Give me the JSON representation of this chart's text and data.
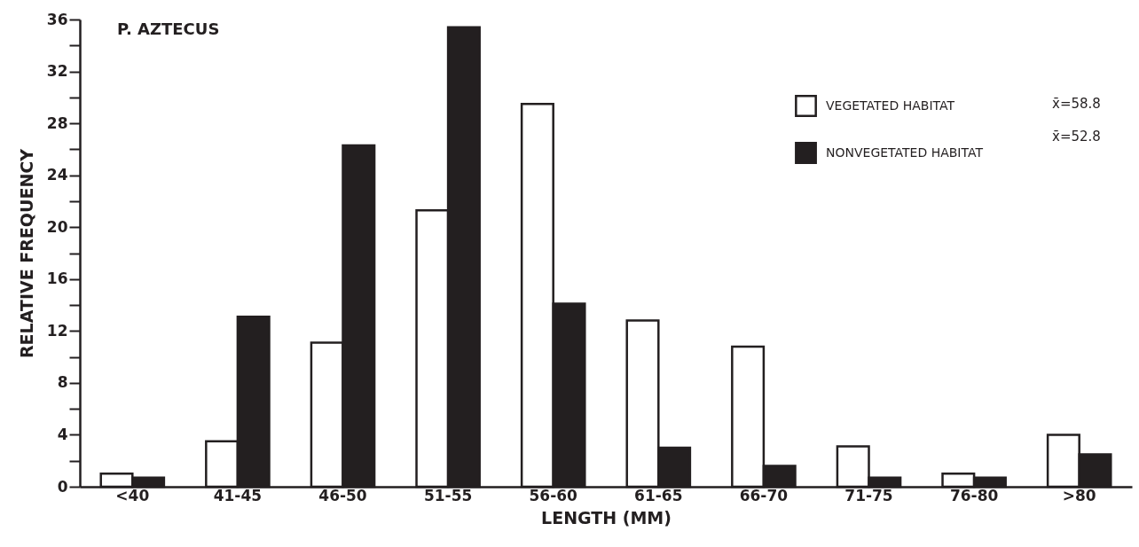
{
  "chart_data": {
    "type": "bar",
    "title": "P. AZTECUS",
    "xlabel": "LENGTH (MM)",
    "ylabel": "RELATIVE FREQUENCY",
    "categories": [
      "<40",
      "41-45",
      "46-50",
      "51-55",
      "56-60",
      "61-65",
      "66-70",
      "71-75",
      "76-80",
      ">80"
    ],
    "series": [
      {
        "name": "VEGETATED HABITAT",
        "color": "#ffffff",
        "values": [
          1.0,
          3.5,
          11.1,
          21.3,
          29.5,
          12.8,
          10.8,
          3.1,
          1.0,
          4.0
        ]
      },
      {
        "name": "NONVEGETATED HABITAT",
        "color": "#231f20",
        "values": [
          0.7,
          13.1,
          26.3,
          35.4,
          14.1,
          3.0,
          1.6,
          0.7,
          0.7,
          2.5
        ]
      }
    ],
    "ylim": [
      0,
      36
    ],
    "yticks": [
      0,
      {
        "value": 2,
        "label": null
      },
      4,
      {
        "value": 6,
        "label": null
      },
      8,
      {
        "value": 10,
        "label": null
      },
      12,
      {
        "value": 14,
        "label": null
      },
      16,
      {
        "value": 18,
        "label": null
      },
      20,
      {
        "value": 22,
        "label": null
      },
      24,
      {
        "value": 26,
        "label": null
      },
      28,
      {
        "value": 30,
        "label": null
      },
      32,
      {
        "value": 34,
        "label": null
      },
      36
    ],
    "grid": false,
    "legend": "top right",
    "annotations": [
      "x̄=58.8",
      "x̄=52.8"
    ]
  }
}
